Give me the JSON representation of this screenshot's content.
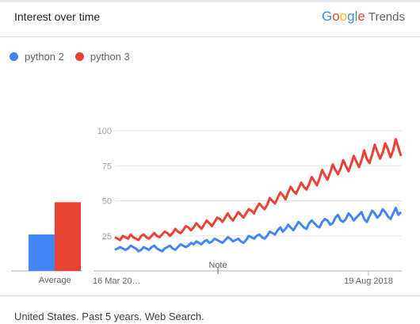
{
  "header": {
    "title": "Interest over time",
    "brand_letters": [
      {
        "ch": "G",
        "color": "#4285F4"
      },
      {
        "ch": "o",
        "color": "#EA4335"
      },
      {
        "ch": "o",
        "color": "#FBBC05"
      },
      {
        "ch": "g",
        "color": "#4285F4"
      },
      {
        "ch": "l",
        "color": "#34A853"
      },
      {
        "ch": "e",
        "color": "#EA4335"
      }
    ],
    "brand_suffix": "Trends"
  },
  "legend": [
    {
      "label": "python 2",
      "color": "#4285F4"
    },
    {
      "label": "python 3",
      "color": "#EA4335"
    }
  ],
  "average": {
    "label": "Average"
  },
  "footer": {
    "text": "United States. Past 5 years. Web Search."
  },
  "chart_data": {
    "type": "line",
    "ylim": [
      0,
      100
    ],
    "yticks": [
      25,
      50,
      75,
      100
    ],
    "x_start_label": "16 Mar 20…",
    "x_end_label": "19 Aug 2018",
    "note_label": "Note",
    "grid": true,
    "legend_position": "top-left",
    "averages": [
      {
        "name": "python 2",
        "value": 26
      },
      {
        "name": "python 3",
        "value": 49
      }
    ],
    "series": [
      {
        "name": "python 2",
        "color": "#4285F4",
        "values": [
          15,
          16,
          17,
          16,
          15,
          16,
          18,
          17,
          16,
          14,
          15,
          17,
          16,
          15,
          17,
          18,
          16,
          15,
          14,
          16,
          17,
          18,
          16,
          15,
          17,
          19,
          18,
          17,
          18,
          20,
          19,
          21,
          20,
          19,
          21,
          22,
          20,
          21,
          23,
          22,
          21,
          20,
          22,
          24,
          23,
          21,
          22,
          23,
          21,
          20,
          22,
          25,
          24,
          23,
          25,
          26,
          24,
          23,
          25,
          28,
          27,
          26,
          29,
          31,
          28,
          30,
          33,
          31,
          29,
          32,
          35,
          33,
          31,
          30,
          34,
          36,
          34,
          32,
          31,
          35,
          37,
          36,
          33,
          34,
          38,
          40,
          36,
          35,
          37,
          41,
          39,
          36,
          38,
          40,
          42,
          37,
          35,
          39,
          43,
          41,
          38,
          40,
          44,
          42,
          39,
          37,
          41,
          45,
          40,
          42
        ]
      },
      {
        "name": "python 3",
        "color": "#EA4335",
        "values": [
          24,
          23,
          22,
          25,
          24,
          23,
          26,
          24,
          23,
          22,
          25,
          26,
          24,
          23,
          25,
          27,
          25,
          24,
          26,
          28,
          27,
          25,
          27,
          30,
          28,
          27,
          29,
          32,
          31,
          29,
          31,
          34,
          32,
          30,
          33,
          36,
          34,
          32,
          35,
          38,
          37,
          35,
          38,
          41,
          38,
          36,
          39,
          42,
          40,
          38,
          41,
          44,
          43,
          41,
          45,
          48,
          46,
          44,
          47,
          52,
          50,
          48,
          52,
          56,
          54,
          51,
          56,
          60,
          57,
          55,
          59,
          63,
          60,
          58,
          62,
          67,
          64,
          61,
          66,
          72,
          68,
          65,
          70,
          76,
          72,
          69,
          73,
          79,
          75,
          71,
          76,
          82,
          78,
          74,
          79,
          86,
          80,
          77,
          83,
          90,
          85,
          80,
          84,
          91,
          87,
          81,
          86,
          94,
          88,
          82
        ]
      }
    ]
  }
}
